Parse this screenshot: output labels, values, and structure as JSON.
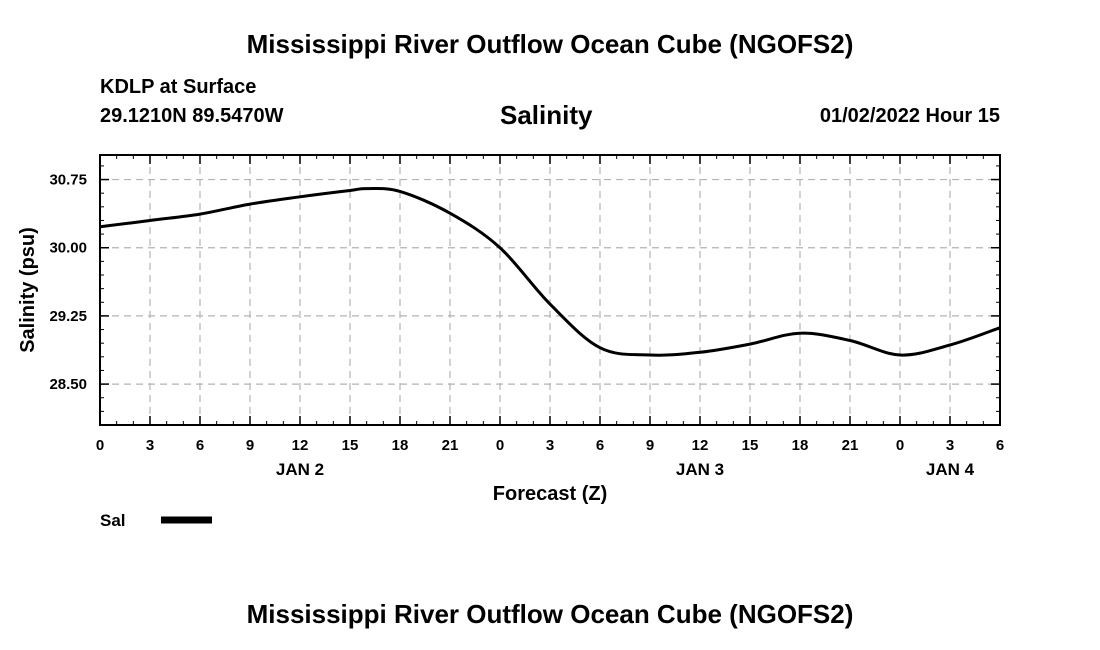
{
  "page": {
    "title_top": "Mississippi River Outflow Ocean Cube (NGOFS2)",
    "title_bottom": "Mississippi River Outflow Ocean Cube (NGOFS2)",
    "station": "KDLP at Surface",
    "coords": "29.1210N  89.5470W",
    "datetime": "01/02/2022 Hour 15"
  },
  "chart_data": {
    "type": "line",
    "title": "Salinity",
    "xlabel": "Forecast (Z)",
    "ylabel": "Salinity (psu)",
    "x_unit": "hours from 2022-01-02 00Z",
    "xlim": [
      0,
      54
    ],
    "ylim": [
      28.05,
      31.02
    ],
    "yticks": [
      28.5,
      29.25,
      30.0,
      30.75
    ],
    "ytick_labels": [
      "28.50",
      "29.25",
      "30.00",
      "30.75"
    ],
    "xticks": [
      0,
      3,
      6,
      9,
      12,
      15,
      18,
      21,
      24,
      27,
      30,
      33,
      36,
      39,
      42,
      45,
      48,
      51,
      54
    ],
    "xtick_labels": [
      "0",
      "3",
      "6",
      "9",
      "12",
      "15",
      "18",
      "21",
      "0",
      "3",
      "6",
      "9",
      "12",
      "15",
      "18",
      "21",
      "0",
      "3",
      "6"
    ],
    "date_labels": [
      {
        "x": 12,
        "label": "JAN 2"
      },
      {
        "x": 36,
        "label": "JAN 3"
      },
      {
        "x": 51,
        "label": "JAN 4"
      }
    ],
    "grid": true,
    "legend": [
      {
        "name": "Sal",
        "color": "#000000"
      }
    ],
    "series": [
      {
        "name": "Sal",
        "color": "#000000",
        "x": [
          0,
          3,
          6,
          9,
          12,
          15,
          16,
          18,
          21,
          24,
          27,
          30,
          33,
          36,
          39,
          42,
          45,
          48,
          51,
          54
        ],
        "values": [
          30.23,
          30.3,
          30.37,
          30.48,
          30.56,
          30.63,
          30.65,
          30.62,
          30.38,
          30.0,
          29.38,
          28.9,
          28.82,
          28.85,
          28.94,
          29.06,
          28.98,
          28.82,
          28.93,
          29.12
        ]
      }
    ]
  }
}
